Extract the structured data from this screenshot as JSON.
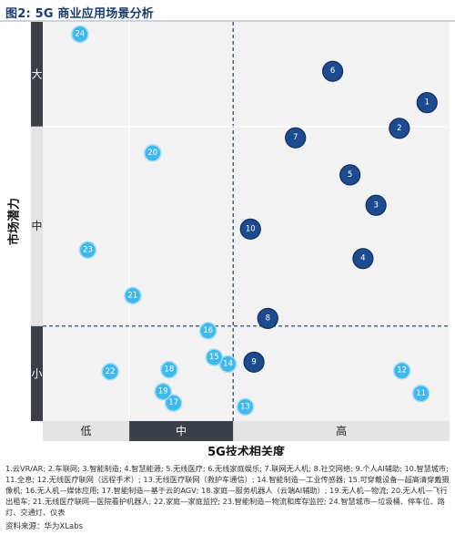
{
  "figure": {
    "title": "图2: 5G 商业应用场景分析",
    "legend_text": "1.云VR/AR; 2.车联网; 3.智能制造; 4.智慧能源; 5.无线医疗; 6.无线家庭娱乐; 7.联网无人机; 8.社交网络; 9.个人AI辅助; 10.智慧城市; 11.全息; 12.无线医疗联网（远程手术）; 13.无线医疗联网（救护车通信）; 14.智能制造—工业传感器; 15.可穿戴设备—超高清穿戴摄像机; 16.无人机—媒体应用; 17.智能制造—基于云的AGV; 18.家庭—服务机器人（云端AI辅助）; 19.无人机—物流; 20.无人机—飞行出租车; 21.无线医疗联网—医院看护机器人; 22.家庭—家庭监控; 23.智能制造—物流和库存监控; 24.智慧城市—垃圾桶、停车位、路灯、交通灯、仪表",
    "source": "资料来源：华为XLabs"
  },
  "colors": {
    "background": "#f2f2f2",
    "band_dark": "#3b3f47",
    "band_light": "#e4e4e4",
    "bubble_dark": "#1d4b8f",
    "bubble_dark_edge": "#0f2f60",
    "bubble_light": "#3fb8ec",
    "bubble_light_edge": "#9fdcf7",
    "divider_solid": "#ffffff",
    "divider_dashed": "#2a4d86"
  },
  "chart_data": {
    "type": "scatter",
    "xlabel": "5G技术相关度",
    "ylabel": "市场潜力",
    "x_categories": [
      "低",
      "中",
      "高"
    ],
    "y_categories": [
      "小",
      "中",
      "大"
    ],
    "x_bands": [
      {
        "label": "低",
        "range": [
          0,
          1
        ]
      },
      {
        "label": "中",
        "range": [
          1,
          2.2
        ]
      },
      {
        "label": "高",
        "range": [
          2.2,
          4.7
        ]
      }
    ],
    "y_bands": [
      {
        "label": "小",
        "range": [
          0,
          1
        ]
      },
      {
        "label": "中",
        "range": [
          1,
          3.1
        ]
      },
      {
        "label": "大",
        "range": [
          3.1,
          4.2
        ]
      }
    ],
    "xlim": [
      0,
      4.7
    ],
    "ylim": [
      0,
      4.2
    ],
    "points": [
      {
        "id": "1",
        "x": 4.44,
        "y": 3.35,
        "group": "high"
      },
      {
        "id": "2",
        "x": 4.12,
        "y": 3.08,
        "group": "high"
      },
      {
        "id": "3",
        "x": 3.85,
        "y": 2.27,
        "group": "high"
      },
      {
        "id": "4",
        "x": 3.7,
        "y": 1.71,
        "group": "high"
      },
      {
        "id": "5",
        "x": 3.55,
        "y": 2.59,
        "group": "high"
      },
      {
        "id": "6",
        "x": 3.35,
        "y": 3.68,
        "group": "high"
      },
      {
        "id": "7",
        "x": 2.92,
        "y": 2.98,
        "group": "high"
      },
      {
        "id": "8",
        "x": 2.6,
        "y": 1.08,
        "group": "high"
      },
      {
        "id": "9",
        "x": 2.44,
        "y": 0.62,
        "group": "high"
      },
      {
        "id": "10",
        "x": 2.4,
        "y": 2.02,
        "group": "high"
      },
      {
        "id": "11",
        "x": 4.37,
        "y": 0.29,
        "group": "low"
      },
      {
        "id": "12",
        "x": 4.15,
        "y": 0.53,
        "group": "low"
      },
      {
        "id": "13",
        "x": 2.34,
        "y": 0.15,
        "group": "low"
      },
      {
        "id": "14",
        "x": 2.14,
        "y": 0.6,
        "group": "low"
      },
      {
        "id": "15",
        "x": 1.98,
        "y": 0.67,
        "group": "low"
      },
      {
        "id": "16",
        "x": 1.91,
        "y": 0.95,
        "group": "low"
      },
      {
        "id": "17",
        "x": 1.51,
        "y": 0.19,
        "group": "low"
      },
      {
        "id": "18",
        "x": 1.46,
        "y": 0.54,
        "group": "low"
      },
      {
        "id": "19",
        "x": 1.39,
        "y": 0.31,
        "group": "low"
      },
      {
        "id": "20",
        "x": 1.27,
        "y": 2.82,
        "group": "low"
      },
      {
        "id": "21",
        "x": 1.04,
        "y": 1.32,
        "group": "low"
      },
      {
        "id": "22",
        "x": 0.78,
        "y": 0.52,
        "group": "low"
      },
      {
        "id": "23",
        "x": 0.52,
        "y": 1.8,
        "group": "low"
      },
      {
        "id": "24",
        "x": 0.43,
        "y": 4.07,
        "group": "low"
      }
    ]
  }
}
